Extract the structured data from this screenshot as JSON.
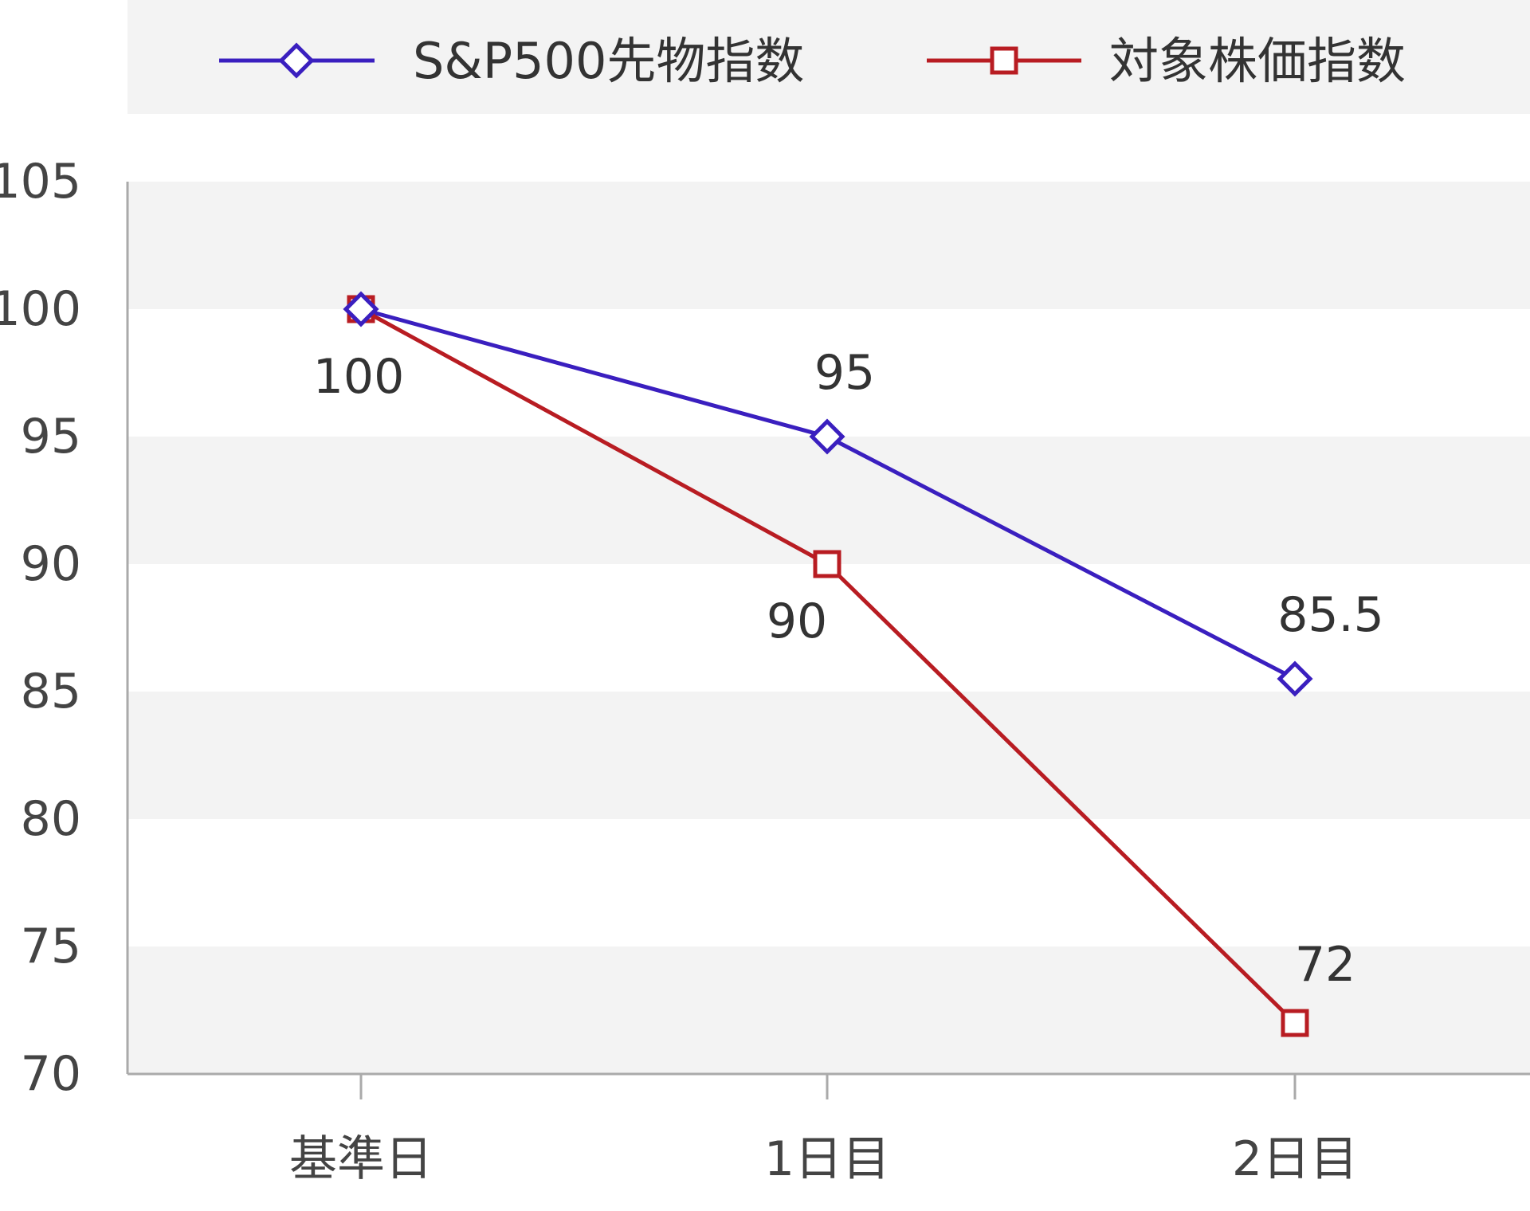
{
  "chart_data": {
    "type": "line",
    "categories": [
      "基準日",
      "1日目",
      "2日目"
    ],
    "series": [
      {
        "name": "S&P500先物指数",
        "values": [
          100,
          95,
          85.5
        ],
        "color": "#3a1fbf",
        "marker": "diamond"
      },
      {
        "name": "対象株価指数",
        "values": [
          100,
          90,
          72
        ],
        "color": "#b81c22",
        "marker": "square"
      }
    ],
    "data_labels": [
      [
        null,
        "95",
        "85.5"
      ],
      [
        "100",
        "90",
        "72"
      ]
    ],
    "y_ticks": [
      "70",
      "75",
      "80",
      "85",
      "90",
      "95",
      "100",
      "105"
    ],
    "ylim": [
      70,
      105
    ],
    "grid": "alternating-bands",
    "legend_position": "top",
    "colors": {
      "band": "#f3f3f3",
      "axis": "#aaaaaa",
      "tick_text": "#444444"
    }
  }
}
